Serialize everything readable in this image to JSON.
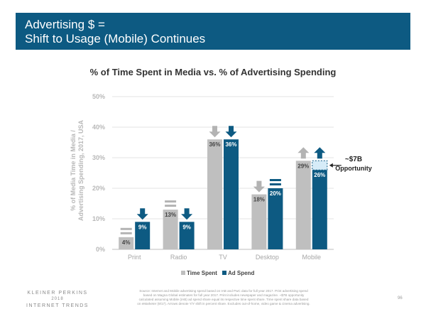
{
  "header": {
    "line1": "Advertising $ =",
    "line2": "Shift to Usage (Mobile) Continues"
  },
  "chart_data": {
    "type": "bar",
    "title": "% of Time Spent in Media vs. % of Advertising Spending",
    "ylabel_line1": "% of Media Time in Media /",
    "ylabel_line2": "Advertising Spending, 2017, USA",
    "xlabel": "",
    "ylim": [
      0,
      50
    ],
    "yticks": [
      "0%",
      "10%",
      "20%",
      "30%",
      "40%",
      "50%"
    ],
    "categories": [
      "Print",
      "Radio",
      "TV",
      "Desktop",
      "Mobile"
    ],
    "series": [
      {
        "name": "Time Spent",
        "values": [
          4,
          13,
          36,
          18,
          29
        ],
        "labels": [
          "4%",
          "13%",
          "36%",
          "18%",
          "29%"
        ],
        "color": "#bfbfbf"
      },
      {
        "name": "Ad Spend",
        "values": [
          9,
          9,
          36,
          20,
          26
        ],
        "labels": [
          "9%",
          "9%",
          "36%",
          "20%",
          "26%"
        ],
        "color": "#0d5a82"
      }
    ],
    "indicators": [
      {
        "category": "Print",
        "time": "equal",
        "ad": "down"
      },
      {
        "category": "Radio",
        "time": "equal",
        "ad": "down"
      },
      {
        "category": "TV",
        "time": "down",
        "ad": "down"
      },
      {
        "category": "Desktop",
        "time": "down",
        "ad": "equal"
      },
      {
        "category": "Mobile",
        "time": "up",
        "ad": "up"
      }
    ],
    "annotation": {
      "line1": "~$7B",
      "line2": "Opportunity"
    },
    "grid": true,
    "legend": "bottom"
  },
  "footer": {
    "logo_line1": "KLEINER PERKINS",
    "logo_year": "2018",
    "logo_line2": "INTERNET TRENDS",
    "source_line1": "Source: Internet and Mobile advertising spend based on IAB and PwC data for full year 2017. Print advertising spend",
    "source_line2": "based on Magna Global estimates for full year 2017. Print includes newspaper and magazine. ~$7B opportunity",
    "source_line3": "calculated assuming Mobile (IAB) ad spend share equal its respective time spent share. Time spent share data based",
    "source_line4": "on eMarketer (9/17). Arrows denote Y/Y shift in percent share. Excludes out-of-home, video game & cinema advertising.",
    "page_number": "96"
  }
}
